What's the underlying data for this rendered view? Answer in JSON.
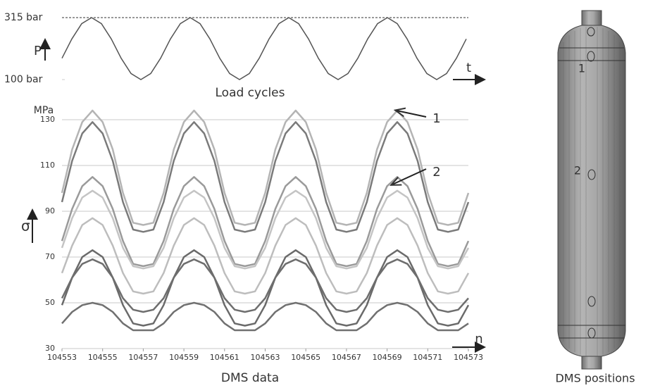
{
  "chart_data": [
    {
      "type": "line",
      "title": "Load cycles",
      "y_label": "P",
      "x_label": "t",
      "ylim": [
        100,
        315
      ],
      "yticks": [
        {
          "value": 315,
          "label": "315 bar"
        },
        {
          "value": 100,
          "label": "100 bar"
        }
      ],
      "color": "#555555",
      "values": [
        174,
        241,
        294,
        315,
        294,
        241,
        174,
        121,
        100,
        121,
        174,
        241,
        294,
        315,
        294,
        241,
        174,
        121,
        100,
        121,
        174,
        241,
        294,
        315,
        294,
        241,
        174,
        121,
        100,
        121,
        174,
        241,
        294,
        315,
        294,
        241,
        174,
        121,
        100,
        121,
        174,
        241
      ]
    },
    {
      "type": "line",
      "title": "DMS data",
      "y_label": "σ",
      "y_unit": "MPa",
      "x_label": "n",
      "ylim": [
        30,
        137
      ],
      "yticks": [
        30,
        50,
        70,
        90,
        110,
        130
      ],
      "xlim": [
        104553,
        104573
      ],
      "xticks": [
        104553,
        104555,
        104557,
        104559,
        104561,
        104563,
        104565,
        104567,
        104569,
        104571,
        104573
      ],
      "grid": true,
      "annotations": [
        "1",
        "2"
      ],
      "x": [
        104553,
        104553.5,
        104554,
        104554.5,
        104555,
        104555.5,
        104556,
        104556.5,
        104557,
        104557.5,
        104558,
        104558.5,
        104559,
        104559.5,
        104560,
        104560.5,
        104561,
        104561.5,
        104562,
        104562.5,
        104563,
        104563.5,
        104564,
        104564.5,
        104565,
        104565.5,
        104566,
        104566.5,
        104567,
        104567.5,
        104568,
        104568.5,
        104569,
        104569.5,
        104570,
        104570.5,
        104571,
        104571.5,
        104572,
        104572.5,
        104573
      ],
      "series": [
        {
          "color": "#b4b4b4",
          "values": [
            98,
            117,
            129,
            134,
            129,
            117,
            98,
            85,
            84,
            85,
            98,
            117,
            129,
            134,
            129,
            117,
            98,
            85,
            84,
            85,
            98,
            117,
            129,
            134,
            129,
            117,
            98,
            85,
            84,
            85,
            98,
            117,
            129,
            134,
            129,
            117,
            98,
            85,
            84,
            85,
            98
          ]
        },
        {
          "color": "#7a7a7a",
          "values": [
            94,
            112,
            124,
            129,
            124,
            112,
            94,
            82,
            81,
            82,
            94,
            112,
            124,
            129,
            124,
            112,
            94,
            82,
            81,
            82,
            94,
            112,
            124,
            129,
            124,
            112,
            94,
            82,
            81,
            82,
            94,
            112,
            124,
            129,
            124,
            112,
            94,
            82,
            81,
            82,
            94
          ]
        },
        {
          "color": "#9a9a9a",
          "values": [
            77,
            91,
            101,
            105,
            101,
            91,
            77,
            67,
            66,
            67,
            77,
            91,
            101,
            105,
            101,
            91,
            77,
            67,
            66,
            67,
            77,
            91,
            101,
            105,
            101,
            91,
            77,
            67,
            66,
            67,
            77,
            91,
            101,
            105,
            101,
            91,
            77,
            67,
            66,
            67,
            77
          ]
        },
        {
          "color": "#c4c4c4",
          "values": [
            74,
            87,
            96,
            99,
            96,
            87,
            74,
            66,
            65,
            66,
            74,
            87,
            96,
            99,
            96,
            87,
            74,
            66,
            65,
            66,
            74,
            87,
            96,
            99,
            96,
            87,
            74,
            66,
            65,
            66,
            74,
            87,
            96,
            99,
            96,
            87,
            74,
            66,
            65,
            66,
            74
          ]
        },
        {
          "color": "#bdbdbd",
          "values": [
            63,
            75,
            84,
            87,
            84,
            75,
            63,
            55,
            54,
            55,
            63,
            75,
            84,
            87,
            84,
            75,
            63,
            55,
            54,
            55,
            63,
            75,
            84,
            87,
            84,
            75,
            63,
            55,
            54,
            55,
            63,
            75,
            84,
            87,
            84,
            75,
            63,
            55,
            54,
            55,
            63
          ]
        },
        {
          "color": "#6a6a6a",
          "values": [
            49,
            61,
            70,
            73,
            70,
            61,
            49,
            41,
            40,
            41,
            49,
            61,
            70,
            73,
            70,
            61,
            49,
            41,
            40,
            41,
            49,
            61,
            70,
            73,
            70,
            61,
            49,
            41,
            40,
            41,
            49,
            61,
            70,
            73,
            70,
            61,
            49,
            41,
            40,
            41,
            49
          ]
        },
        {
          "color": "#6e6e6e",
          "values": [
            52,
            61,
            67,
            69,
            67,
            61,
            52,
            47,
            46,
            47,
            52,
            61,
            67,
            69,
            67,
            61,
            52,
            47,
            46,
            47,
            52,
            61,
            67,
            69,
            67,
            61,
            52,
            47,
            46,
            47,
            52,
            61,
            67,
            69,
            67,
            61,
            52,
            47,
            46,
            47,
            52
          ]
        },
        {
          "color": "#707070",
          "values": [
            41,
            46,
            49,
            50,
            49,
            46,
            41,
            38,
            38,
            38,
            41,
            46,
            49,
            50,
            49,
            46,
            41,
            38,
            38,
            38,
            41,
            46,
            49,
            50,
            49,
            46,
            41,
            38,
            38,
            38,
            41,
            46,
            49,
            50,
            49,
            46,
            41,
            38,
            38,
            38,
            41
          ]
        }
      ]
    }
  ],
  "diagram": {
    "labels": [
      "1",
      "2"
    ],
    "caption": "DMS positions"
  }
}
